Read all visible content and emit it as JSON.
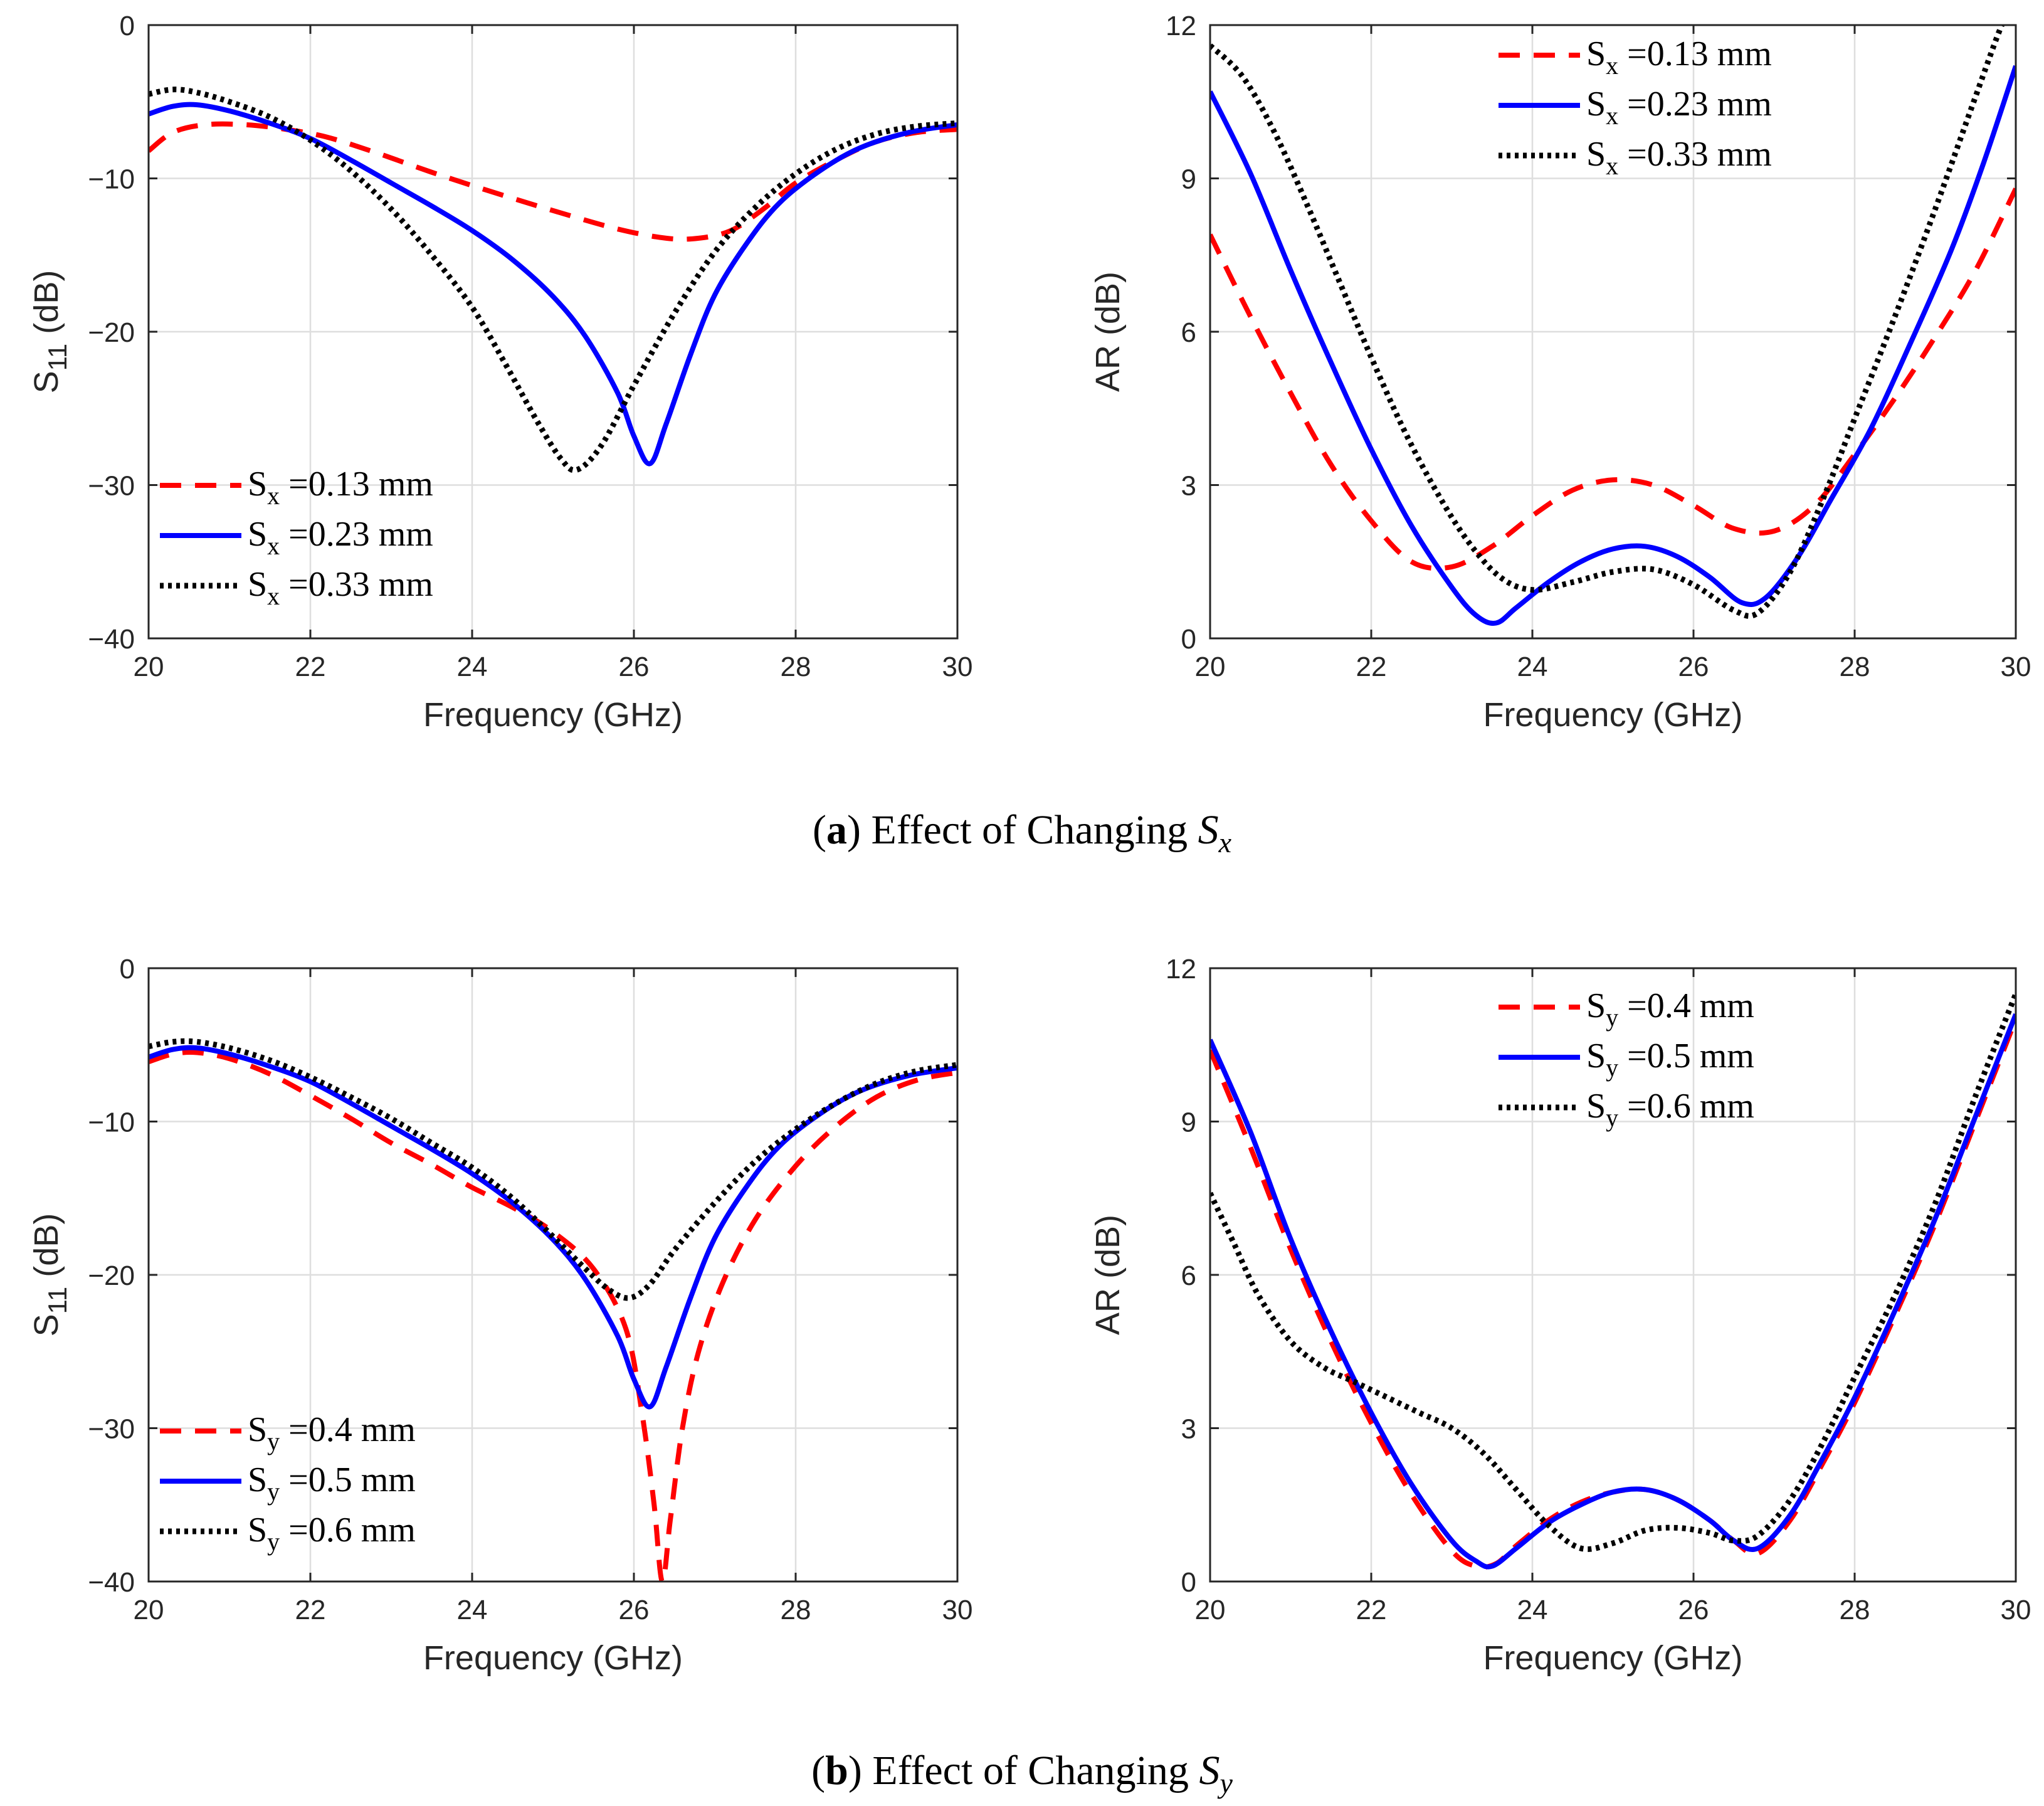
{
  "captions": [
    {
      "bold": "a",
      "text": "Effect of Changing",
      "sym": "S",
      "sub": "x"
    },
    {
      "bold": "b",
      "text": "Effect of Changing",
      "sym": "S",
      "sub": "y"
    }
  ],
  "colors": {
    "red": "#ff0000",
    "blue": "#0000ff",
    "black": "#000000"
  },
  "chart_data": [
    {
      "id": "s11_sx",
      "type": "line",
      "xlabel": "Frequency (GHz)",
      "ylabel": "S11 (dB)",
      "ylabel_main": "S",
      "ylabel_sub": "11",
      "ylabel_unit": "(dB)",
      "xlim": [
        20,
        30
      ],
      "ylim": [
        -40,
        0
      ],
      "xticks": [
        20,
        22,
        24,
        26,
        28,
        30
      ],
      "yticks": [
        0,
        -10,
        -20,
        -30,
        -40
      ],
      "ytick_labels": [
        "0",
        "−10",
        "−20",
        "−30",
        "−40"
      ],
      "grid": true,
      "legend_position": "lower-left",
      "series": [
        {
          "name": "Sx =0.13 mm",
          "sym": "S",
          "sub": "x",
          "rest": "=0.13 mm",
          "style": "dashed",
          "color": "#ff0000",
          "x": [
            20,
            20.3,
            20.7,
            21.2,
            21.7,
            22.2,
            22.8,
            23.5,
            24.2,
            25,
            25.8,
            26.4,
            26.8,
            27.2,
            27.6,
            28,
            28.5,
            29,
            29.5,
            30
          ],
          "y": [
            -8.2,
            -7,
            -6.5,
            -6.5,
            -6.8,
            -7.3,
            -8.3,
            -9.6,
            -10.8,
            -12.1,
            -13.3,
            -13.9,
            -13.9,
            -13.4,
            -12,
            -10.3,
            -8.8,
            -7.6,
            -7,
            -6.8
          ]
        },
        {
          "name": "Sx =0.23 mm",
          "sym": "S",
          "sub": "x",
          "rest": "=0.23 mm",
          "style": "solid",
          "color": "#0000ff",
          "x": [
            20,
            20.3,
            20.6,
            21,
            21.5,
            22,
            22.5,
            23,
            23.5,
            24,
            24.5,
            25,
            25.4,
            25.8,
            26,
            26.2,
            26.4,
            26.7,
            27,
            27.4,
            27.8,
            28.3,
            28.8,
            29.4,
            30
          ],
          "y": [
            -5.8,
            -5.3,
            -5.2,
            -5.6,
            -6.4,
            -7.4,
            -8.8,
            -10.3,
            -11.8,
            -13.4,
            -15.3,
            -17.7,
            -20.3,
            -24,
            -26.8,
            -28.6,
            -26,
            -21.5,
            -17.6,
            -14.2,
            -11.6,
            -9.5,
            -8,
            -7,
            -6.5
          ]
        },
        {
          "name": "Sx =0.33 mm",
          "sym": "S",
          "sub": "x",
          "rest": "=0.33 mm",
          "style": "dotted",
          "color": "#000000",
          "x": [
            20,
            20.3,
            20.6,
            21,
            21.5,
            22,
            22.5,
            23,
            23.5,
            24,
            24.4,
            24.8,
            25.1,
            25.3,
            25.6,
            26,
            26.5,
            27,
            27.5,
            28,
            28.5,
            29,
            29.5,
            30
          ],
          "y": [
            -4.5,
            -4.2,
            -4.4,
            -5,
            -6,
            -7.5,
            -9.5,
            -12,
            -15,
            -18.4,
            -22,
            -25.8,
            -28.3,
            -29,
            -27.4,
            -23.5,
            -18.8,
            -14.8,
            -11.9,
            -9.7,
            -8.1,
            -7.1,
            -6.6,
            -6.4
          ]
        }
      ]
    },
    {
      "id": "ar_sx",
      "type": "line",
      "xlabel": "Frequency (GHz)",
      "ylabel": "AR (dB)",
      "ylabel_main": "AR",
      "ylabel_sub": "",
      "ylabel_unit": "(dB)",
      "xlim": [
        20,
        30
      ],
      "ylim": [
        0,
        12
      ],
      "xticks": [
        20,
        22,
        24,
        26,
        28,
        30
      ],
      "yticks": [
        0,
        3,
        6,
        9,
        12
      ],
      "ytick_labels": [
        "0",
        "3",
        "6",
        "9",
        "12"
      ],
      "grid": true,
      "legend_position": "upper-right",
      "series": [
        {
          "name": "Sx =0.13 mm",
          "sym": "S",
          "sub": "x",
          "rest": "=0.13 mm",
          "style": "dashed",
          "color": "#ff0000",
          "x": [
            20,
            20.5,
            21,
            21.5,
            22,
            22.5,
            23,
            23.5,
            24,
            24.5,
            25,
            25.5,
            26,
            26.5,
            27,
            27.5,
            28,
            28.5,
            29,
            29.5,
            30
          ],
          "y": [
            7.9,
            6.3,
            4.8,
            3.4,
            2.3,
            1.5,
            1.4,
            1.8,
            2.4,
            2.9,
            3.1,
            3,
            2.6,
            2.15,
            2.1,
            2.6,
            3.6,
            4.7,
            5.9,
            7.2,
            8.8
          ]
        },
        {
          "name": "Sx =0.23 mm",
          "sym": "S",
          "sub": "x",
          "rest": "=0.23 mm",
          "style": "solid",
          "color": "#0000ff",
          "x": [
            20,
            20.5,
            21,
            21.5,
            22,
            22.5,
            23,
            23.3,
            23.55,
            23.8,
            24.2,
            24.6,
            25,
            25.4,
            25.8,
            26.2,
            26.6,
            26.9,
            27.3,
            27.7,
            28.2,
            28.7,
            29.2,
            29.6,
            30
          ],
          "y": [
            10.7,
            9.1,
            7.2,
            5.4,
            3.7,
            2.2,
            1.0,
            0.45,
            0.3,
            0.6,
            1.1,
            1.5,
            1.75,
            1.8,
            1.6,
            1.2,
            0.7,
            0.8,
            1.6,
            2.7,
            4.1,
            5.8,
            7.6,
            9.3,
            11.2
          ]
        },
        {
          "name": "Sx =0.33 mm",
          "sym": "S",
          "sub": "x",
          "rest": "=0.33 mm",
          "style": "dotted",
          "color": "#000000",
          "x": [
            20,
            20.4,
            20.8,
            21.2,
            21.6,
            22,
            22.4,
            22.8,
            23.2,
            23.6,
            24,
            24.5,
            25,
            25.5,
            26,
            26.5,
            26.8,
            27.2,
            27.6,
            28,
            28.5,
            29,
            29.5,
            29.8,
            30
          ],
          "y": [
            11.6,
            11,
            9.9,
            8.5,
            7,
            5.5,
            4.1,
            2.9,
            1.9,
            1.2,
            0.95,
            1.1,
            1.3,
            1.35,
            1.05,
            0.55,
            0.5,
            1.3,
            2.7,
            4.3,
            6.3,
            8.4,
            10.6,
            11.9,
            12.6
          ]
        }
      ]
    },
    {
      "id": "s11_sy",
      "type": "line",
      "xlabel": "Frequency (GHz)",
      "ylabel": "S11 (dB)",
      "ylabel_main": "S",
      "ylabel_sub": "11",
      "ylabel_unit": "(dB)",
      "xlim": [
        20,
        30
      ],
      "ylim": [
        -40,
        0
      ],
      "xticks": [
        20,
        22,
        24,
        26,
        28,
        30
      ],
      "yticks": [
        0,
        -10,
        -20,
        -30,
        -40
      ],
      "ytick_labels": [
        "0",
        "−10",
        "−20",
        "−30",
        "−40"
      ],
      "grid": true,
      "legend_position": "lower-left",
      "series": [
        {
          "name": "Sy =0.4 mm",
          "sym": "S",
          "sub": "y",
          "rest": "=0.4 mm",
          "style": "dashed",
          "color": "#ff0000",
          "x": [
            20,
            20.3,
            20.6,
            21,
            21.5,
            22,
            22.5,
            23,
            23.5,
            24,
            24.5,
            25,
            25.5,
            25.9,
            26.1,
            26.25,
            26.35,
            26.45,
            26.6,
            26.8,
            27.1,
            27.5,
            28,
            28.5,
            29,
            29.5,
            30
          ],
          "y": [
            -6.1,
            -5.6,
            -5.5,
            -5.9,
            -6.9,
            -8.3,
            -9.8,
            -11.4,
            -12.8,
            -14.3,
            -15.6,
            -17.2,
            -19.6,
            -23.5,
            -29,
            -35,
            -40,
            -36,
            -30,
            -25,
            -20.5,
            -16.4,
            -12.9,
            -10.3,
            -8.4,
            -7.3,
            -6.8
          ]
        },
        {
          "name": "Sy =0.5 mm",
          "sym": "S",
          "sub": "y",
          "rest": "=0.5 mm",
          "style": "solid",
          "color": "#0000ff",
          "x": [
            20,
            20.3,
            20.6,
            21,
            21.5,
            22,
            22.5,
            23,
            23.5,
            24,
            24.5,
            25,
            25.4,
            25.8,
            26,
            26.2,
            26.4,
            26.7,
            27,
            27.4,
            27.8,
            28.3,
            28.8,
            29.4,
            30
          ],
          "y": [
            -5.8,
            -5.3,
            -5.2,
            -5.6,
            -6.4,
            -7.4,
            -8.8,
            -10.3,
            -11.8,
            -13.4,
            -15.3,
            -17.7,
            -20.3,
            -24,
            -26.8,
            -28.6,
            -26,
            -21.5,
            -17.6,
            -14.2,
            -11.6,
            -9.5,
            -8,
            -7,
            -6.5
          ]
        },
        {
          "name": "Sy =0.6 mm",
          "sym": "S",
          "sub": "y",
          "rest": "=0.6 mm",
          "style": "dotted",
          "color": "#000000",
          "x": [
            20,
            20.3,
            20.6,
            21,
            21.5,
            22,
            22.5,
            23,
            23.5,
            24,
            24.5,
            25,
            25.4,
            25.7,
            25.95,
            26.2,
            26.5,
            27,
            27.5,
            28,
            28.5,
            29,
            29.5,
            30
          ],
          "y": [
            -5.1,
            -4.8,
            -4.8,
            -5.2,
            -6,
            -7.1,
            -8.4,
            -9.8,
            -11.4,
            -13,
            -15,
            -17.5,
            -19.6,
            -21,
            -21.5,
            -20.6,
            -18.4,
            -15.3,
            -12.6,
            -10.5,
            -8.8,
            -7.5,
            -6.7,
            -6.3
          ]
        }
      ]
    },
    {
      "id": "ar_sy",
      "type": "line",
      "xlabel": "Frequency (GHz)",
      "ylabel": "AR (dB)",
      "ylabel_main": "AR",
      "ylabel_sub": "",
      "ylabel_unit": "(dB)",
      "xlim": [
        20,
        30
      ],
      "ylim": [
        0,
        12
      ],
      "xticks": [
        20,
        22,
        24,
        26,
        28,
        30
      ],
      "yticks": [
        0,
        3,
        6,
        9,
        12
      ],
      "ytick_labels": [
        "0",
        "3",
        "6",
        "9",
        "12"
      ],
      "grid": true,
      "legend_position": "upper-right",
      "series": [
        {
          "name": "Sy =0.4 mm",
          "sym": "S",
          "sub": "y",
          "rest": "=0.4 mm",
          "style": "dashed",
          "color": "#ff0000",
          "x": [
            20,
            20.5,
            21,
            21.5,
            22,
            22.5,
            23,
            23.3,
            23.55,
            23.8,
            24.2,
            24.6,
            25,
            25.4,
            25.8,
            26.2,
            26.5,
            26.8,
            27.2,
            27.6,
            28,
            28.5,
            29,
            29.5,
            30
          ],
          "y": [
            10.4,
            8.5,
            6.5,
            4.7,
            3.1,
            1.7,
            0.6,
            0.3,
            0.35,
            0.7,
            1.2,
            1.55,
            1.75,
            1.8,
            1.6,
            1.2,
            0.8,
            0.55,
            1.2,
            2.3,
            3.5,
            5.2,
            7,
            9,
            11
          ]
        },
        {
          "name": "Sy =0.5 mm",
          "sym": "S",
          "sub": "y",
          "rest": "=0.5 mm",
          "style": "solid",
          "color": "#0000ff",
          "x": [
            20,
            20.5,
            21,
            21.5,
            22,
            22.5,
            23,
            23.3,
            23.5,
            23.8,
            24.2,
            24.6,
            25,
            25.4,
            25.8,
            26.2,
            26.5,
            26.8,
            27.2,
            27.6,
            28,
            28.5,
            29,
            29.5,
            30
          ],
          "y": [
            10.6,
            8.8,
            6.7,
            4.9,
            3.3,
            1.9,
            0.8,
            0.4,
            0.3,
            0.65,
            1.15,
            1.5,
            1.75,
            1.8,
            1.6,
            1.2,
            0.8,
            0.65,
            1.3,
            2.4,
            3.6,
            5.3,
            7.1,
            9.1,
            11.1
          ]
        },
        {
          "name": "Sy =0.6 mm",
          "sym": "S",
          "sub": "y",
          "rest": "=0.6 mm",
          "style": "dotted",
          "color": "#000000",
          "x": [
            20,
            20.3,
            20.6,
            21,
            21.4,
            21.8,
            22.2,
            22.6,
            23,
            23.4,
            23.8,
            24.2,
            24.6,
            25,
            25.4,
            25.8,
            26.2,
            26.5,
            26.8,
            27.2,
            27.6,
            28,
            28.5,
            29,
            29.5,
            30
          ],
          "y": [
            7.6,
            6.6,
            5.6,
            4.7,
            4.2,
            3.9,
            3.6,
            3.3,
            3,
            2.5,
            1.8,
            1.1,
            0.65,
            0.75,
            1,
            1.05,
            0.95,
            0.8,
            0.9,
            1.6,
            2.7,
            4,
            5.6,
            7.4,
            9.5,
            11.5
          ]
        }
      ]
    }
  ]
}
